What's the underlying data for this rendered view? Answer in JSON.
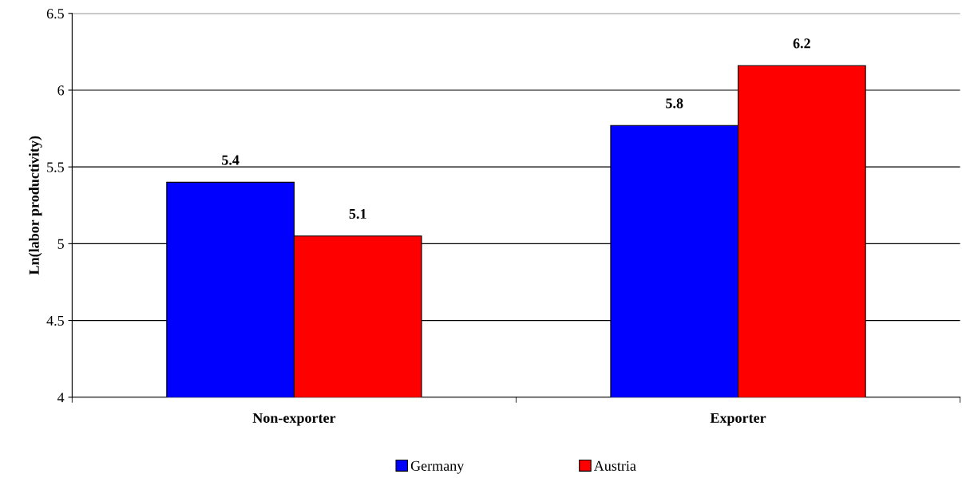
{
  "chart_data": {
    "type": "bar",
    "ylabel": "Ln(labor productivity)",
    "categories": [
      "Non-exporter",
      "Exporter"
    ],
    "series": [
      {
        "name": "Germany",
        "color": "#0000ff",
        "values": [
          5.4,
          5.77
        ],
        "value_labels": [
          "5.4",
          "5.8"
        ]
      },
      {
        "name": "Austria",
        "color": "#ff0000",
        "values": [
          5.05,
          6.16
        ],
        "value_labels": [
          "5.1",
          "6.2"
        ]
      }
    ],
    "ylim": [
      4,
      6.5
    ],
    "yticks": [
      4,
      4.5,
      5,
      5.5,
      6,
      6.5
    ],
    "grid": "y",
    "legend": "bottom"
  }
}
